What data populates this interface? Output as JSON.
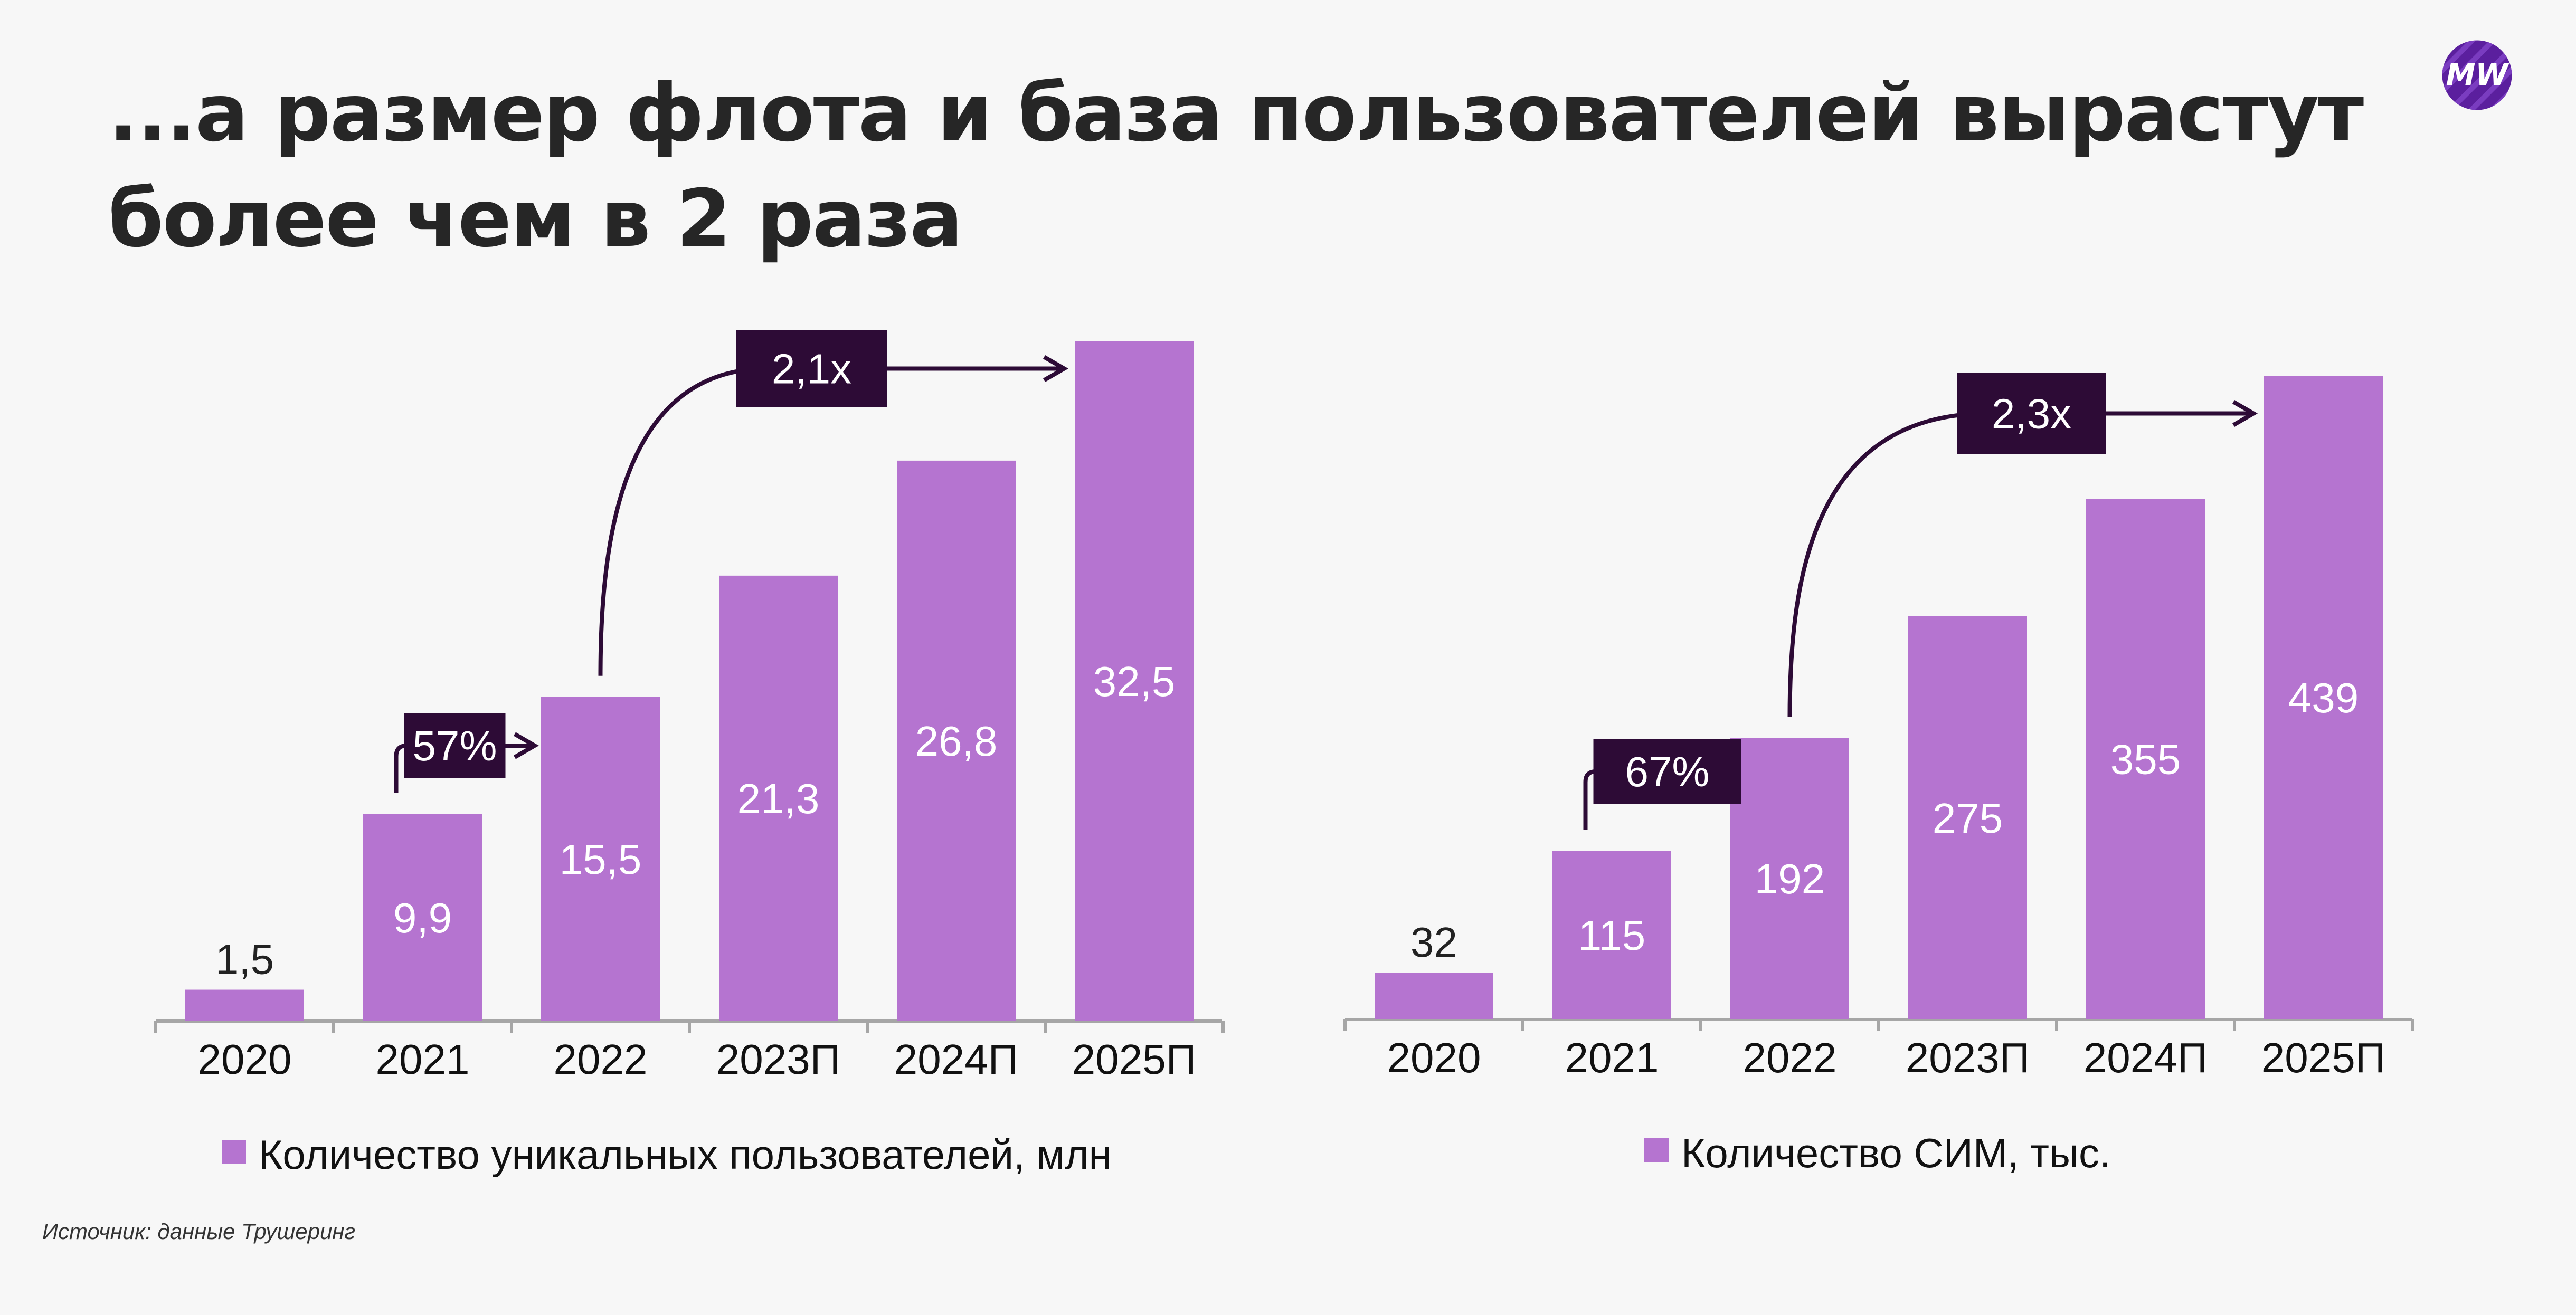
{
  "title_lines": [
    "...а размер флота и база пользователей вырастут",
    "более чем в 2 раза"
  ],
  "logo": {
    "icon": "mw-logo-icon",
    "text": "MW",
    "color": "#5b1f9e"
  },
  "source": "Источник: данные Трушеринг",
  "colors": {
    "bar": "#b574d0",
    "label_inside": "#ffffff",
    "label_outside": "#222222",
    "badge": "#2d0b36",
    "axis": "#a6a6a6"
  },
  "chart_data": [
    {
      "type": "bar",
      "title": "",
      "categories": [
        "2020",
        "2021",
        "2022",
        "2023П",
        "2024П",
        "2025П"
      ],
      "series": [
        {
          "name": "Количество уникальных пользователей, млн",
          "values": [
            1.5,
            9.9,
            15.5,
            21.3,
            26.8,
            32.5
          ]
        }
      ],
      "value_labels": [
        "1,5",
        "9,9",
        "15,5",
        "21,3",
        "26,8",
        "32,5"
      ],
      "legend": "Количество уникальных пользователей, млн",
      "ylim": [
        0,
        32.5
      ],
      "annotations": [
        {
          "text": "57%",
          "from": "2021",
          "to": "2022"
        },
        {
          "text": "2,1x",
          "from": "2022",
          "to": "2025П"
        }
      ]
    },
    {
      "type": "bar",
      "title": "",
      "categories": [
        "2020",
        "2021",
        "2022",
        "2023П",
        "2024П",
        "2025П"
      ],
      "series": [
        {
          "name": "Количество СИМ, тыс.",
          "values": [
            32,
            115,
            192,
            275,
            355,
            439
          ]
        }
      ],
      "value_labels": [
        "32",
        "115",
        "192",
        "275",
        "355",
        "439"
      ],
      "legend": "Количество СИМ, тыс.",
      "ylim": [
        0,
        439
      ],
      "annotations": [
        {
          "text": "67%",
          "from": "2021",
          "to": "2022"
        },
        {
          "text": "2,3x",
          "from": "2022",
          "to": "2025П"
        }
      ]
    }
  ]
}
